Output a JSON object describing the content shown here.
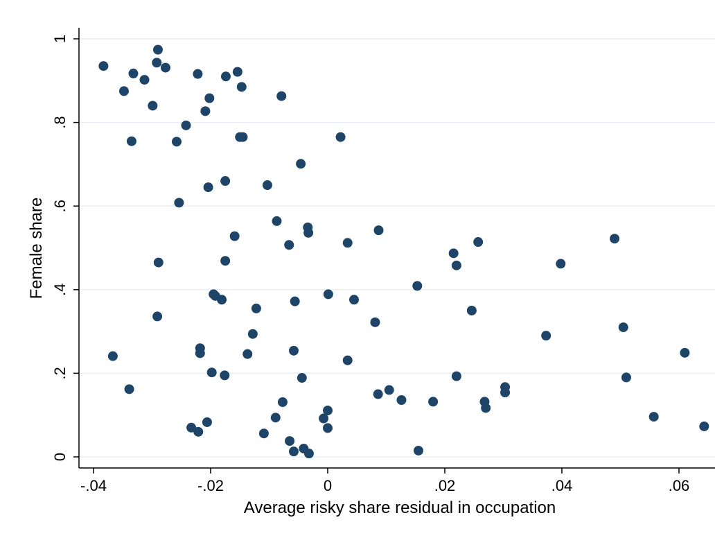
{
  "chart_data": {
    "type": "scatter",
    "title": "",
    "xlabel": "Average risky share residual in occupation",
    "ylabel": "Female share",
    "xlim": [
      -0.04,
      0.065
    ],
    "ylim": [
      0,
      1
    ],
    "xticks": [
      -0.04,
      -0.02,
      0,
      0.02,
      0.04,
      0.06
    ],
    "xtick_labels": [
      "-.04",
      "-.02",
      "0",
      ".02",
      ".04",
      ".06"
    ],
    "yticks": [
      0,
      0.2,
      0.4,
      0.6,
      0.8,
      1
    ],
    "ytick_labels": [
      "0",
      ".2",
      ".4",
      ".6",
      ".8",
      "1"
    ],
    "grid": "horizontal",
    "marker_color": "#1e4468",
    "points": [
      {
        "x": -0.0383,
        "y": 0.935
      },
      {
        "x": -0.0348,
        "y": 0.875
      },
      {
        "x": -0.0332,
        "y": 0.917
      },
      {
        "x": -0.0313,
        "y": 0.902
      },
      {
        "x": -0.029,
        "y": 0.974
      },
      {
        "x": -0.0292,
        "y": 0.943
      },
      {
        "x": -0.0277,
        "y": 0.931
      },
      {
        "x": -0.0299,
        "y": 0.84
      },
      {
        "x": -0.0335,
        "y": 0.755
      },
      {
        "x": -0.0222,
        "y": 0.916
      },
      {
        "x": -0.0202,
        "y": 0.858
      },
      {
        "x": -0.0209,
        "y": 0.827
      },
      {
        "x": -0.0242,
        "y": 0.793
      },
      {
        "x": -0.0258,
        "y": 0.754
      },
      {
        "x": -0.0174,
        "y": 0.91
      },
      {
        "x": -0.0154,
        "y": 0.921
      },
      {
        "x": -0.0147,
        "y": 0.885
      },
      {
        "x": -0.0079,
        "y": 0.863
      },
      {
        "x": -0.015,
        "y": 0.765
      },
      {
        "x": -0.0145,
        "y": 0.765
      },
      {
        "x": 0.0022,
        "y": 0.765
      },
      {
        "x": -0.0046,
        "y": 0.701
      },
      {
        "x": -0.0175,
        "y": 0.66
      },
      {
        "x": -0.0204,
        "y": 0.645
      },
      {
        "x": -0.0103,
        "y": 0.65
      },
      {
        "x": -0.0254,
        "y": 0.608
      },
      {
        "x": -0.0087,
        "y": 0.564
      },
      {
        "x": -0.0034,
        "y": 0.549
      },
      {
        "x": -0.0033,
        "y": 0.536
      },
      {
        "x": 0.0087,
        "y": 0.542
      },
      {
        "x": -0.0159,
        "y": 0.528
      },
      {
        "x": -0.0066,
        "y": 0.507
      },
      {
        "x": 0.0034,
        "y": 0.512
      },
      {
        "x": 0.0257,
        "y": 0.514
      },
      {
        "x": 0.0215,
        "y": 0.487
      },
      {
        "x": 0.049,
        "y": 0.522
      },
      {
        "x": -0.0175,
        "y": 0.469
      },
      {
        "x": -0.0289,
        "y": 0.465
      },
      {
        "x": 0.022,
        "y": 0.458
      },
      {
        "x": 0.0398,
        "y": 0.462
      },
      {
        "x": 0.0153,
        "y": 0.409
      },
      {
        "x": -0.0195,
        "y": 0.389
      },
      {
        "x": -0.0192,
        "y": 0.385
      },
      {
        "x": -0.0181,
        "y": 0.376
      },
      {
        "x": 0.0001,
        "y": 0.389
      },
      {
        "x": -0.0056,
        "y": 0.372
      },
      {
        "x": 0.0045,
        "y": 0.376
      },
      {
        "x": -0.0122,
        "y": 0.355
      },
      {
        "x": 0.0246,
        "y": 0.35
      },
      {
        "x": -0.0291,
        "y": 0.336
      },
      {
        "x": 0.0081,
        "y": 0.322
      },
      {
        "x": 0.0505,
        "y": 0.31
      },
      {
        "x": -0.0128,
        "y": 0.294
      },
      {
        "x": 0.0373,
        "y": 0.29
      },
      {
        "x": -0.0367,
        "y": 0.241
      },
      {
        "x": -0.0218,
        "y": 0.26
      },
      {
        "x": -0.0218,
        "y": 0.248
      },
      {
        "x": -0.0137,
        "y": 0.246
      },
      {
        "x": -0.0058,
        "y": 0.254
      },
      {
        "x": 0.0034,
        "y": 0.231
      },
      {
        "x": 0.061,
        "y": 0.249
      },
      {
        "x": -0.0198,
        "y": 0.202
      },
      {
        "x": -0.0176,
        "y": 0.195
      },
      {
        "x": -0.0044,
        "y": 0.189
      },
      {
        "x": 0.022,
        "y": 0.193
      },
      {
        "x": 0.051,
        "y": 0.19
      },
      {
        "x": -0.0339,
        "y": 0.162
      },
      {
        "x": 0.0105,
        "y": 0.16
      },
      {
        "x": 0.0086,
        "y": 0.15
      },
      {
        "x": 0.0303,
        "y": 0.167
      },
      {
        "x": 0.0303,
        "y": 0.154
      },
      {
        "x": -0.0077,
        "y": 0.131
      },
      {
        "x": 0.0126,
        "y": 0.136
      },
      {
        "x": 0.018,
        "y": 0.132
      },
      {
        "x": 0.0268,
        "y": 0.132
      },
      {
        "x": 0.027,
        "y": 0.117
      },
      {
        "x": 0.0,
        "y": 0.111
      },
      {
        "x": -0.0089,
        "y": 0.094
      },
      {
        "x": -0.0007,
        "y": 0.092
      },
      {
        "x": -0.0206,
        "y": 0.083
      },
      {
        "x": 0.0557,
        "y": 0.096
      },
      {
        "x": -0.0233,
        "y": 0.07
      },
      {
        "x": -0.0221,
        "y": 0.06
      },
      {
        "x": 0.0,
        "y": 0.069
      },
      {
        "x": 0.0643,
        "y": 0.073
      },
      {
        "x": -0.0109,
        "y": 0.056
      },
      {
        "x": -0.0065,
        "y": 0.038
      },
      {
        "x": -0.0041,
        "y": 0.02
      },
      {
        "x": -0.0058,
        "y": 0.013
      },
      {
        "x": -0.0032,
        "y": 0.008
      },
      {
        "x": 0.0155,
        "y": 0.015
      }
    ]
  }
}
